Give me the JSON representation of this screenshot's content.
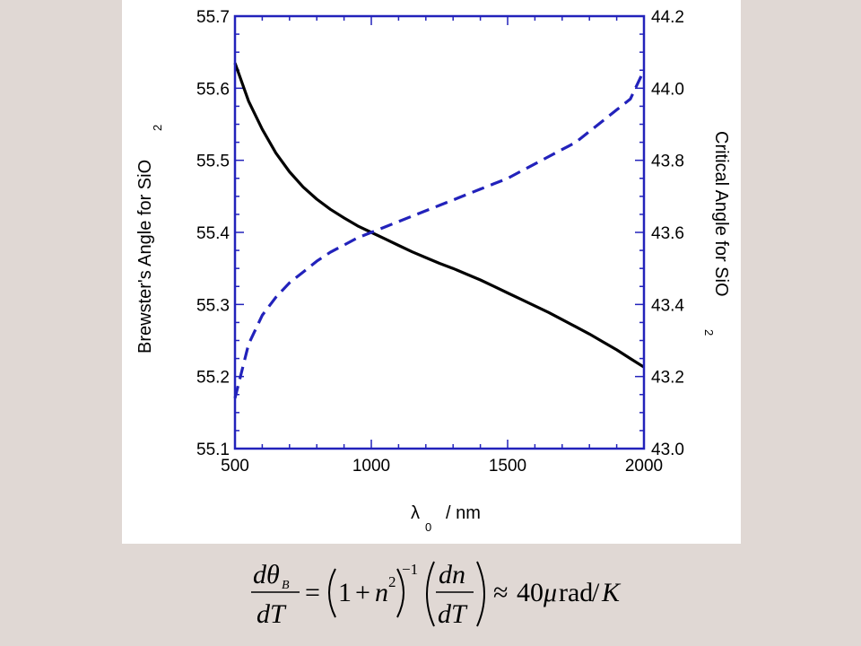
{
  "chart_data": {
    "type": "line",
    "x": [
      500,
      550,
      600,
      650,
      700,
      750,
      800,
      850,
      900,
      950,
      1000,
      1050,
      1100,
      1150,
      1200,
      1250,
      1300,
      1350,
      1400,
      1450,
      1500,
      1550,
      1600,
      1650,
      1700,
      1750,
      1800,
      1850,
      1900,
      1950,
      2000
    ],
    "xlabel": "λ",
    "xlabel_subscript": "0",
    "xlabel_unit": "/ nm",
    "xlim": [
      500,
      2000
    ],
    "xticks": [
      "500",
      "1000",
      "1500",
      "2000"
    ],
    "y_left": {
      "label": "Brewster's Angle for SiO",
      "label_subscript": "2",
      "lim": [
        55.1,
        55.7
      ],
      "ticks": [
        "55.1",
        "55.2",
        "55.3",
        "55.4",
        "55.5",
        "55.6",
        "55.7"
      ]
    },
    "y_right": {
      "label": "Critical Angle for SiO",
      "label_subscript": "2",
      "lim": [
        43.0,
        44.2
      ],
      "ticks": [
        "43.0",
        "43.2",
        "43.4",
        "43.6",
        "43.8",
        "44.0",
        "44.2"
      ],
      "color": "#2222bb"
    },
    "series": [
      {
        "axis": "left",
        "color": "#000000",
        "style": "solid",
        "values": [
          55.635,
          55.582,
          55.543,
          55.51,
          55.484,
          55.463,
          55.446,
          55.432,
          55.42,
          55.409,
          55.4,
          55.391,
          55.382,
          55.373,
          55.365,
          55.357,
          55.35,
          55.342,
          55.334,
          55.325,
          55.316,
          55.307,
          55.298,
          55.289,
          55.279,
          55.269,
          55.259,
          55.248,
          55.237,
          55.225,
          55.213
        ]
      },
      {
        "axis": "right",
        "color": "#2222bb",
        "style": "dashed",
        "values": [
          43.14,
          43.29,
          43.37,
          43.42,
          43.46,
          43.49,
          43.52,
          43.545,
          43.565,
          43.585,
          43.6,
          43.615,
          43.63,
          43.645,
          43.66,
          43.675,
          43.69,
          43.705,
          43.72,
          43.735,
          43.75,
          43.77,
          43.79,
          43.81,
          43.83,
          43.85,
          43.88,
          43.91,
          43.94,
          43.97,
          44.05
        ]
      }
    ],
    "frame_color": "#2222bb",
    "grid": false
  },
  "equation": {
    "lhs_numerator": "dθ",
    "lhs_numerator_sub": "B",
    "lhs_denominator": "dT",
    "equals": "=",
    "factor_one": "1",
    "factor_plus": "+",
    "factor_n": "n",
    "factor_exp": "2",
    "outer_exp": "−1",
    "rhs_numerator": "dn",
    "rhs_denominator": "dT",
    "approx": "≈",
    "value": "40",
    "unit_mu": "μ",
    "unit_rest": "rad",
    "unit_slash": "/",
    "unit_K": "K"
  }
}
